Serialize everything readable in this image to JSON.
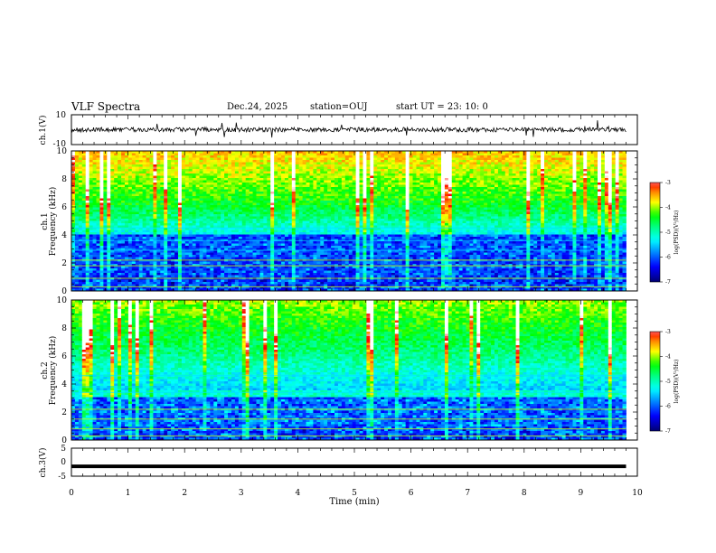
{
  "header": {
    "title": "VLF Spectra",
    "date": "Dec.24, 2025",
    "station": "station=OUJ",
    "start": "start  UT =  23: 10: 0"
  },
  "chart_data": [
    {
      "type": "line",
      "panel": "ch1-waveform",
      "ylabel": "ch.1(V)",
      "ylim": [
        -10,
        10
      ],
      "yticks": [
        "10",
        "-10"
      ],
      "baseline": 0
    },
    {
      "type": "heatmap",
      "panel": "ch1-spectrogram",
      "ylabel_line1": "ch.1",
      "ylabel_line2": "Frequency (kHz)",
      "xlim": [
        0,
        10
      ],
      "ylim": [
        0,
        10
      ],
      "yticks": [
        "0",
        "2",
        "4",
        "6",
        "8",
        "10"
      ],
      "colorbar": {
        "label": "log(PSD)(V²/Hz)",
        "range": [
          -7,
          -3
        ],
        "ticks": [
          "-3",
          "-4",
          "-5",
          "-6",
          "-7"
        ]
      }
    },
    {
      "type": "heatmap",
      "panel": "ch2-spectrogram",
      "ylabel_line1": "ch.2",
      "ylabel_line2": "Frequency (kHz)",
      "xlim": [
        0,
        10
      ],
      "ylim": [
        0,
        10
      ],
      "yticks": [
        "0",
        "2",
        "4",
        "6",
        "8",
        "10"
      ],
      "colorbar": {
        "label": "log(PSD)(V²/Hz)",
        "range": [
          -7,
          -3
        ],
        "ticks": [
          "-3",
          "-4",
          "-5",
          "-6",
          "-7"
        ]
      }
    },
    {
      "type": "line",
      "panel": "ch3-waveform",
      "ylabel": "ch.3(V)",
      "ylim": [
        -5,
        5
      ],
      "yticks": [
        "5",
        "0",
        "-5"
      ],
      "baseline": -1.5
    }
  ],
  "xaxis": {
    "label": "Time (min)",
    "range": [
      0,
      10
    ],
    "ticks": [
      "0",
      "1",
      "2",
      "3",
      "4",
      "5",
      "6",
      "7",
      "8",
      "9",
      "10"
    ],
    "data_end": 9.8
  },
  "colormap": [
    "#000000",
    "#00008b",
    "#0000ff",
    "#0080ff",
    "#00ffff",
    "#00ff80",
    "#00ff00",
    "#ffff00",
    "#ff8000",
    "#ff0000",
    "#ffffff"
  ]
}
